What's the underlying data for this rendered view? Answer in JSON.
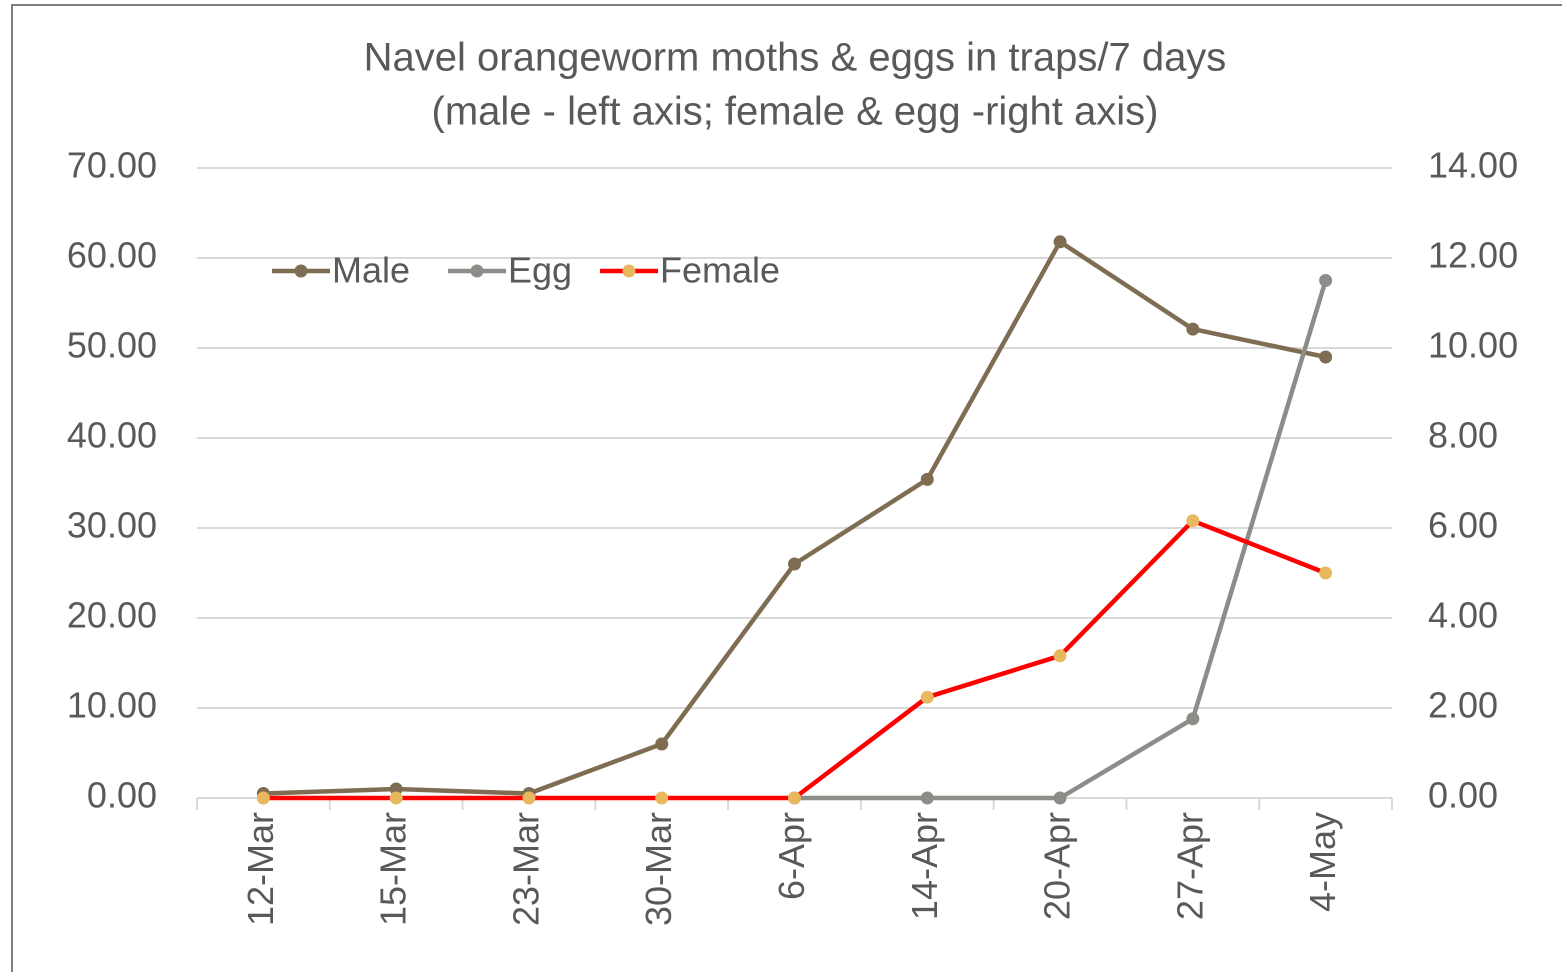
{
  "chart_data": {
    "type": "line",
    "title": [
      "Navel orangeworm moths & eggs in traps/7 days",
      "(male - left axis; female & egg -right axis)"
    ],
    "categories": [
      "12-Mar",
      "15-Mar",
      "23-Mar",
      "30-Mar",
      "6-Apr",
      "14-Apr",
      "20-Apr",
      "27-Apr",
      "4-May"
    ],
    "series": [
      {
        "name": "Male",
        "color": "#7f6d53",
        "marker_color": "#7f6d53",
        "axis": "y",
        "values": [
          0.5,
          1.0,
          0.5,
          6.0,
          26.0,
          35.4,
          61.8,
          52.1,
          49.0
        ]
      },
      {
        "name": "Egg",
        "color": "#8c8c88",
        "marker_color": "#8c8c88",
        "axis": "y2",
        "values": [
          null,
          null,
          null,
          null,
          0,
          0,
          0,
          1.76,
          11.5
        ]
      },
      {
        "name": "Female",
        "color": "#ff0000",
        "marker_color": "#e8b85f",
        "axis": "y2",
        "values": [
          0,
          0,
          0,
          0,
          0,
          2.24,
          3.16,
          6.16,
          5.0
        ]
      }
    ],
    "ylim": [
      0,
      70
    ],
    "yticks": [
      {
        "value": 0,
        "label": "0.00"
      },
      {
        "value": 10,
        "label": "10.00"
      },
      {
        "value": 20,
        "label": "20.00"
      },
      {
        "value": 30,
        "label": "30.00"
      },
      {
        "value": 40,
        "label": "40.00"
      },
      {
        "value": 50,
        "label": "50.00"
      },
      {
        "value": 60,
        "label": "60.00"
      },
      {
        "value": 70,
        "label": "70.00"
      }
    ],
    "y2lim": [
      0,
      14
    ],
    "y2ticks": [
      {
        "value": 0,
        "label": "0.00"
      },
      {
        "value": 2,
        "label": "2.00"
      },
      {
        "value": 4,
        "label": "4.00"
      },
      {
        "value": 6,
        "label": "6.00"
      },
      {
        "value": 8,
        "label": "8.00"
      },
      {
        "value": 10,
        "label": "10.00"
      },
      {
        "value": 12,
        "label": "12.00"
      },
      {
        "value": 14,
        "label": "14.00"
      }
    ],
    "grid": true,
    "legend": "top-left"
  }
}
